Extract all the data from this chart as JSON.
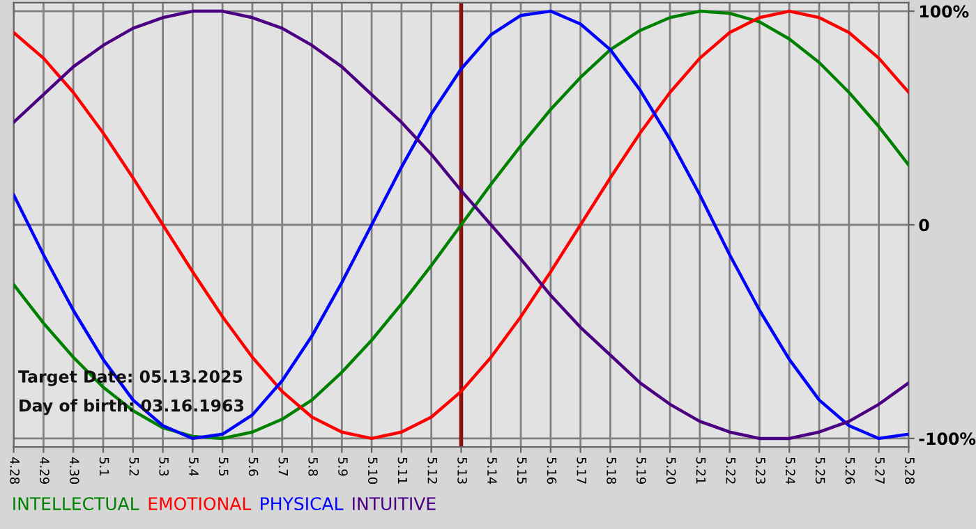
{
  "chart_data": {
    "type": "line",
    "categories": [
      "4.28",
      "4.29",
      "4.30",
      "5.1",
      "5.2",
      "5.3",
      "5.4",
      "5.5",
      "5.6",
      "5.7",
      "5.8",
      "5.9",
      "5.10",
      "5.11",
      "5.12",
      "5.13",
      "5.14",
      "5.15",
      "5.16",
      "5.17",
      "5.18",
      "5.19",
      "5.20",
      "5.21",
      "5.22",
      "5.23",
      "5.24",
      "5.25",
      "5.26",
      "5.27",
      "5.28"
    ],
    "series": [
      {
        "name": "INTELLECTUAL",
        "color": "#008000",
        "values": [
          -28,
          -46,
          -62,
          -76,
          -87,
          -95,
          -99,
          -100,
          -97,
          -91,
          -82,
          -69,
          -54,
          -37,
          -19,
          0,
          19,
          37,
          54,
          69,
          82,
          91,
          97,
          100,
          99,
          95,
          87,
          76,
          62,
          46,
          28
        ]
      },
      {
        "name": "EMOTIONAL",
        "color": "#ff0000",
        "values": [
          90,
          78,
          62,
          43,
          22,
          0,
          -22,
          -43,
          -62,
          -78,
          -90,
          -97,
          -100,
          -97,
          -90,
          -78,
          -62,
          -43,
          -22,
          0,
          22,
          43,
          62,
          78,
          90,
          97,
          100,
          97,
          90,
          78,
          62
        ]
      },
      {
        "name": "PHYSICAL",
        "color": "#0000ff",
        "values": [
          14,
          -14,
          -40,
          -63,
          -82,
          -94,
          -100,
          -98,
          -89,
          -73,
          -52,
          -27,
          0,
          27,
          52,
          73,
          89,
          98,
          100,
          94,
          82,
          63,
          40,
          14,
          -14,
          -40,
          -63,
          -82,
          -94,
          -100,
          -98
        ]
      },
      {
        "name": "INTUITIVE",
        "color": "#4b0082",
        "values": [
          48,
          61,
          74,
          84,
          92,
          97,
          100,
          100,
          97,
          92,
          84,
          74,
          61,
          48,
          33,
          16,
          0,
          -16,
          -33,
          -48,
          -61,
          -74,
          -84,
          -92,
          -97,
          -100,
          -100,
          -97,
          -92,
          -84,
          -74
        ]
      }
    ],
    "ylim": [
      -104,
      104
    ],
    "yticks": [
      {
        "value": 100,
        "label": "100%"
      },
      0,
      {
        "value": -100,
        "label": "-100%"
      }
    ],
    "ref_lines": [
      {
        "axis": "x",
        "value": "5.13",
        "color": "#8b1010"
      }
    ],
    "annotations": [
      "Target Date: 05.13.2025",
      "Day of birth: 03.16.1963"
    ],
    "grid": true,
    "legend": "bottom",
    "marker": "none",
    "line_style": "solid"
  }
}
